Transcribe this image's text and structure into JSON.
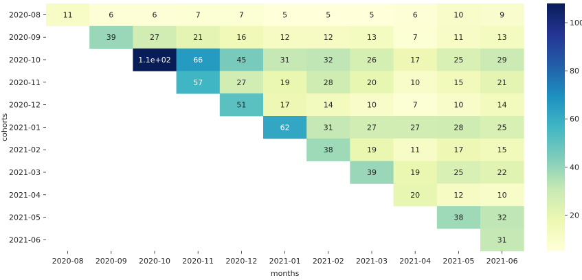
{
  "chart_data": {
    "type": "heatmap",
    "title": "",
    "xlabel": "months",
    "ylabel": "cohorts",
    "x_categories": [
      "2020-08",
      "2020-09",
      "2020-10",
      "2020-11",
      "2020-12",
      "2021-01",
      "2021-02",
      "2021-03",
      "2021-04",
      "2021-05",
      "2021-06"
    ],
    "y_categories": [
      "2020-08",
      "2020-09",
      "2020-10",
      "2020-11",
      "2020-12",
      "2021-01",
      "2021-02",
      "2021-03",
      "2021-04",
      "2021-05",
      "2021-06"
    ],
    "values": [
      [
        11,
        6,
        6,
        7,
        7,
        5,
        5,
        5,
        6,
        10,
        9
      ],
      [
        null,
        39,
        27,
        21,
        16,
        12,
        12,
        13,
        7,
        11,
        13
      ],
      [
        null,
        null,
        110,
        66,
        45,
        31,
        32,
        26,
        17,
        25,
        29
      ],
      [
        null,
        null,
        null,
        57,
        27,
        19,
        28,
        20,
        10,
        15,
        21
      ],
      [
        null,
        null,
        null,
        null,
        51,
        17,
        14,
        10,
        7,
        10,
        14
      ],
      [
        null,
        null,
        null,
        null,
        null,
        62,
        31,
        27,
        27,
        28,
        25
      ],
      [
        null,
        null,
        null,
        null,
        null,
        null,
        38,
        19,
        11,
        17,
        15
      ],
      [
        null,
        null,
        null,
        null,
        null,
        null,
        null,
        39,
        19,
        25,
        22
      ],
      [
        null,
        null,
        null,
        null,
        null,
        null,
        null,
        null,
        20,
        12,
        10
      ],
      [
        null,
        null,
        null,
        null,
        null,
        null,
        null,
        null,
        null,
        38,
        32
      ],
      [
        null,
        null,
        null,
        null,
        null,
        null,
        null,
        null,
        null,
        null,
        31
      ]
    ],
    "cell_labels": [
      [
        "11",
        "6",
        "6",
        "7",
        "7",
        "5",
        "5",
        "5",
        "6",
        "10",
        "9"
      ],
      [
        "",
        "39",
        "27",
        "21",
        "16",
        "12",
        "12",
        "13",
        "7",
        "11",
        "13"
      ],
      [
        "",
        "",
        "1.1e+02",
        "66",
        "45",
        "31",
        "32",
        "26",
        "17",
        "25",
        "29"
      ],
      [
        "",
        "",
        "",
        "57",
        "27",
        "19",
        "28",
        "20",
        "10",
        "15",
        "21"
      ],
      [
        "",
        "",
        "",
        "",
        "51",
        "17",
        "14",
        "10",
        "7",
        "10",
        "14"
      ],
      [
        "",
        "",
        "",
        "",
        "",
        "62",
        "31",
        "27",
        "27",
        "28",
        "25"
      ],
      [
        "",
        "",
        "",
        "",
        "",
        "",
        "38",
        "19",
        "11",
        "17",
        "15"
      ],
      [
        "",
        "",
        "",
        "",
        "",
        "",
        "",
        "39",
        "19",
        "25",
        "22"
      ],
      [
        "",
        "",
        "",
        "",
        "",
        "",
        "",
        "",
        "20",
        "12",
        "10"
      ],
      [
        "",
        "",
        "",
        "",
        "",
        "",
        "",
        "",
        "",
        "38",
        "32"
      ],
      [
        "",
        "",
        "",
        "",
        "",
        "",
        "",
        "",
        "",
        "",
        "31"
      ]
    ],
    "colormap": "YlGnBu",
    "colormap_stops": [
      "#ffffd9",
      "#edf8b1",
      "#c7e9b4",
      "#7fcdbb",
      "#41b6c4",
      "#1d91c0",
      "#225ea8",
      "#253494",
      "#081d58"
    ],
    "vmin": 5,
    "vmax": 108,
    "colorbar_ticks": [
      "20",
      "40",
      "60",
      "80",
      "100"
    ],
    "colorbar_tick_values": [
      20,
      40,
      60,
      80,
      100
    ],
    "grid": false,
    "legend": "colorbar-right"
  }
}
